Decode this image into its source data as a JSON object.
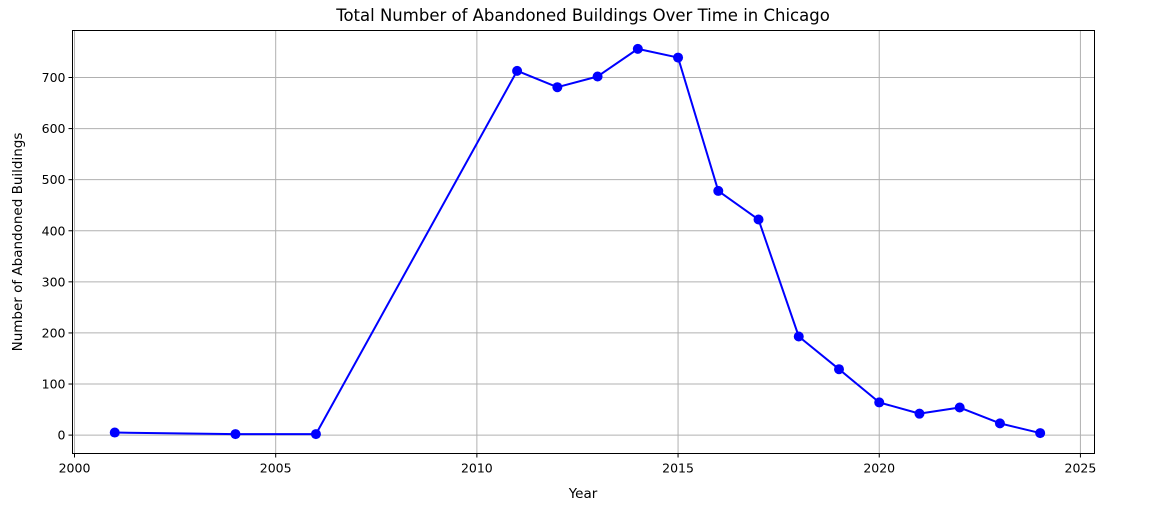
{
  "chart_data": {
    "type": "line",
    "title": "Total Number of Abandoned Buildings Over Time in Chicago",
    "xlabel": "Year",
    "ylabel": "Number of Abandoned Buildings",
    "xlim": [
      1999.95,
      2025.35
    ],
    "ylim": [
      -36,
      792
    ],
    "xticks": [
      2000,
      2005,
      2010,
      2015,
      2020,
      2025
    ],
    "yticks": [
      0,
      100,
      200,
      300,
      400,
      500,
      600,
      700
    ],
    "grid": true,
    "series": [
      {
        "color": "#0000ff",
        "marker": "circle",
        "x": [
          2001,
          2004,
          2006,
          2011,
          2012,
          2013,
          2014,
          2015,
          2016,
          2017,
          2018,
          2019,
          2020,
          2021,
          2022,
          2023,
          2024
        ],
        "y": [
          5,
          2,
          2,
          713,
          681,
          702,
          756,
          739,
          478,
          422,
          193,
          129,
          64,
          42,
          54,
          23,
          4
        ]
      }
    ]
  }
}
